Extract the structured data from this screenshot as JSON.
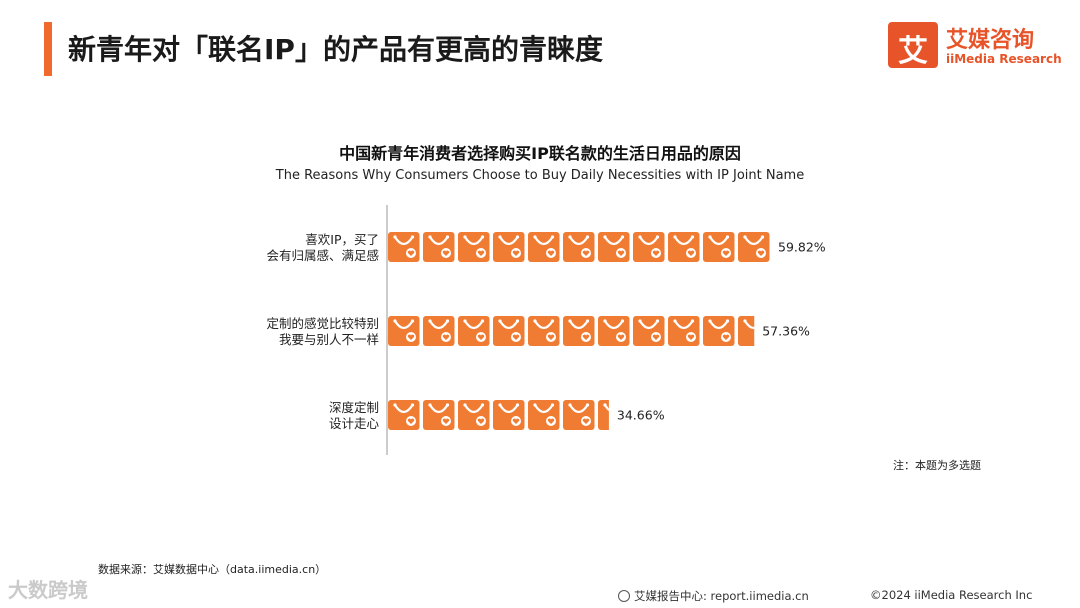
{
  "header": {
    "title": "新青年对「联名IP」的产品有更高的青睐度",
    "logo_cn": "艾媒咨询",
    "logo_en": "iiMedia Research",
    "logo_mark": "艾"
  },
  "chart_data": {
    "type": "bar",
    "title": "中国新青年消费者选择购买IP联名款的生活日用品的原因",
    "subtitle": "The Reasons Why Consumers Choose to Buy Daily Necessities with IP Joint Name",
    "categories": [
      [
        "喜欢IP，买了",
        "会有归属感、满足感"
      ],
      [
        "定制的感觉比较特别",
        "我要与别人不一样"
      ],
      [
        "深度定制",
        "设计走心"
      ]
    ],
    "values": [
      59.82,
      57.36,
      34.66
    ],
    "value_labels": [
      "59.82%",
      "57.36%",
      "34.66%"
    ],
    "unit": "%",
    "bar_color": "#f07c33",
    "bar_style": "pictograph-shopping-bag"
  },
  "note": "注：本题为多选题",
  "source": "数据来源：艾媒数据中心（data.iimedia.cn）",
  "footer": {
    "site": "艾媒报告中心: report.iimedia.cn",
    "copyright": "©2024  iiMedia Research  Inc"
  },
  "watermark": "大数跨境"
}
